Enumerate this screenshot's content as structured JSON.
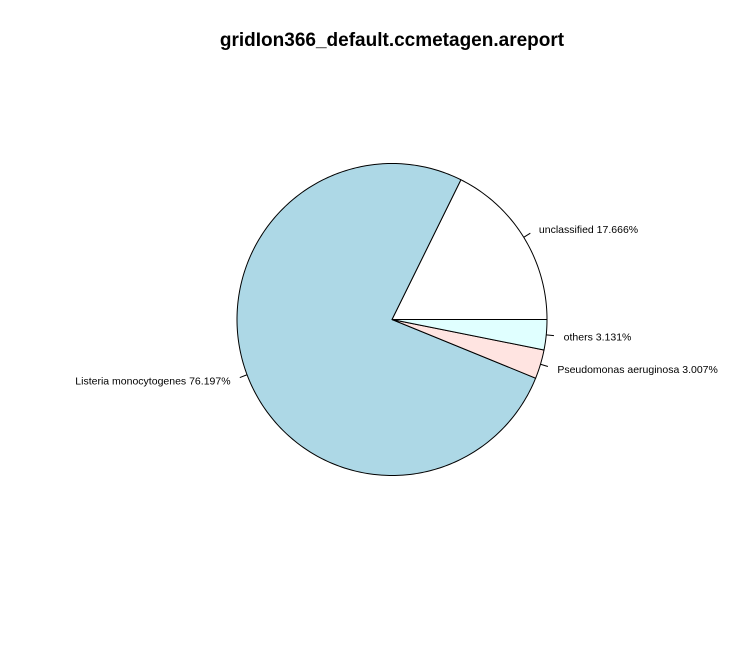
{
  "chart_data": {
    "type": "pie",
    "title": "gridIon366_default.ccmetagen.areport",
    "slices": [
      {
        "label": "unclassified 17.666%",
        "value": 17.666,
        "color": "#ffffff"
      },
      {
        "label": "Listeria monocytogenes 76.197%",
        "value": 76.197,
        "color": "#add8e6"
      },
      {
        "label": "Pseudomonas aeruginosa 3.007%",
        "value": 3.007,
        "color": "#ffe4e1"
      },
      {
        "label": "others 3.131%",
        "value": 3.131,
        "color": "#e0ffff"
      }
    ],
    "direction": "counterclockwise",
    "start": "3 o'clock",
    "legend": "none"
  }
}
